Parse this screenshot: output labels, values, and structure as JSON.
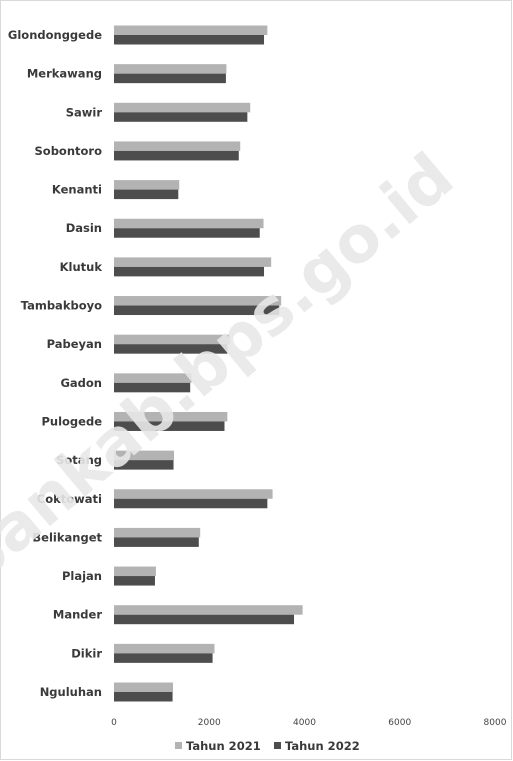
{
  "chart_data": {
    "type": "bar",
    "orientation": "horizontal",
    "categories": [
      "Glondonggede",
      "Merkawang",
      "Sawir",
      "Sobontoro",
      "Kenanti",
      "Dasin",
      "Klutuk",
      "Tambakboyo",
      "Pabeyan",
      "Gadon",
      "Pulogede",
      "Sotang",
      "Coktowati",
      "Belikanget",
      "Plajan",
      "Mander",
      "Dikir",
      "Nguluhan"
    ],
    "series": [
      {
        "name": "Tahun 2021",
        "color": "#b3b3b3",
        "values": [
          3220,
          2360,
          2860,
          2650,
          1370,
          3140,
          3300,
          3510,
          2430,
          1630,
          2380,
          1260,
          3330,
          1810,
          880,
          3960,
          2110,
          1240
        ]
      },
      {
        "name": "Tahun 2022",
        "color": "#4d4d4d",
        "values": [
          3150,
          2350,
          2800,
          2620,
          1350,
          3060,
          3150,
          3470,
          2380,
          1600,
          2320,
          1250,
          3220,
          1780,
          860,
          3780,
          2070,
          1230
        ]
      }
    ],
    "xlim": [
      0,
      8000
    ],
    "xticks": [
      "0",
      "2000",
      "4000",
      "6000",
      "8000"
    ],
    "title": "",
    "xlabel": "",
    "ylabel": "",
    "grid": false,
    "legend_position": "bottom"
  },
  "watermark": "ubankab.bps.go.id"
}
